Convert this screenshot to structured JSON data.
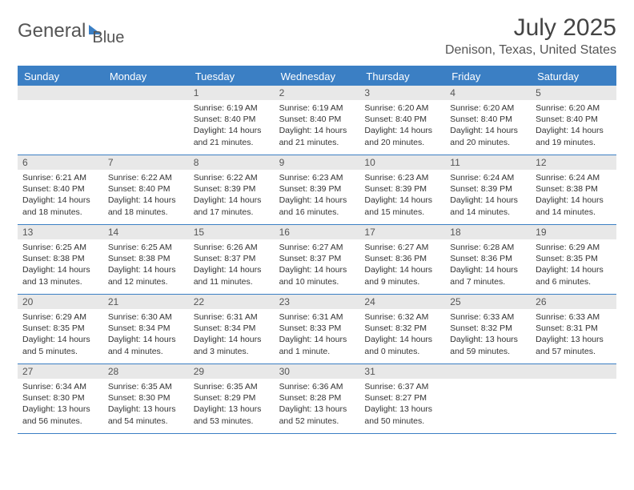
{
  "brand": {
    "word1": "General",
    "word2": "Blue"
  },
  "title": "July 2025",
  "location": "Denison, Texas, United States",
  "colors": {
    "accent": "#3b7fc4",
    "header_text": "#ffffff",
    "num_bar": "#e8e8e8",
    "text": "#333333"
  },
  "typography": {
    "title_fontsize": 30,
    "location_fontsize": 16,
    "dow_fontsize": 13,
    "cell_fontsize": 10.5
  },
  "layout": {
    "cols": 7,
    "rows": 5
  },
  "dow": [
    "Sunday",
    "Monday",
    "Tuesday",
    "Wednesday",
    "Thursday",
    "Friday",
    "Saturday"
  ],
  "weeks": [
    [
      {
        "n": "",
        "sunrise": "",
        "sunset": "",
        "daylight": ""
      },
      {
        "n": "",
        "sunrise": "",
        "sunset": "",
        "daylight": ""
      },
      {
        "n": "1",
        "sunrise": "Sunrise: 6:19 AM",
        "sunset": "Sunset: 8:40 PM",
        "daylight": "Daylight: 14 hours and 21 minutes."
      },
      {
        "n": "2",
        "sunrise": "Sunrise: 6:19 AM",
        "sunset": "Sunset: 8:40 PM",
        "daylight": "Daylight: 14 hours and 21 minutes."
      },
      {
        "n": "3",
        "sunrise": "Sunrise: 6:20 AM",
        "sunset": "Sunset: 8:40 PM",
        "daylight": "Daylight: 14 hours and 20 minutes."
      },
      {
        "n": "4",
        "sunrise": "Sunrise: 6:20 AM",
        "sunset": "Sunset: 8:40 PM",
        "daylight": "Daylight: 14 hours and 20 minutes."
      },
      {
        "n": "5",
        "sunrise": "Sunrise: 6:20 AM",
        "sunset": "Sunset: 8:40 PM",
        "daylight": "Daylight: 14 hours and 19 minutes."
      }
    ],
    [
      {
        "n": "6",
        "sunrise": "Sunrise: 6:21 AM",
        "sunset": "Sunset: 8:40 PM",
        "daylight": "Daylight: 14 hours and 18 minutes."
      },
      {
        "n": "7",
        "sunrise": "Sunrise: 6:22 AM",
        "sunset": "Sunset: 8:40 PM",
        "daylight": "Daylight: 14 hours and 18 minutes."
      },
      {
        "n": "8",
        "sunrise": "Sunrise: 6:22 AM",
        "sunset": "Sunset: 8:39 PM",
        "daylight": "Daylight: 14 hours and 17 minutes."
      },
      {
        "n": "9",
        "sunrise": "Sunrise: 6:23 AM",
        "sunset": "Sunset: 8:39 PM",
        "daylight": "Daylight: 14 hours and 16 minutes."
      },
      {
        "n": "10",
        "sunrise": "Sunrise: 6:23 AM",
        "sunset": "Sunset: 8:39 PM",
        "daylight": "Daylight: 14 hours and 15 minutes."
      },
      {
        "n": "11",
        "sunrise": "Sunrise: 6:24 AM",
        "sunset": "Sunset: 8:39 PM",
        "daylight": "Daylight: 14 hours and 14 minutes."
      },
      {
        "n": "12",
        "sunrise": "Sunrise: 6:24 AM",
        "sunset": "Sunset: 8:38 PM",
        "daylight": "Daylight: 14 hours and 14 minutes."
      }
    ],
    [
      {
        "n": "13",
        "sunrise": "Sunrise: 6:25 AM",
        "sunset": "Sunset: 8:38 PM",
        "daylight": "Daylight: 14 hours and 13 minutes."
      },
      {
        "n": "14",
        "sunrise": "Sunrise: 6:25 AM",
        "sunset": "Sunset: 8:38 PM",
        "daylight": "Daylight: 14 hours and 12 minutes."
      },
      {
        "n": "15",
        "sunrise": "Sunrise: 6:26 AM",
        "sunset": "Sunset: 8:37 PM",
        "daylight": "Daylight: 14 hours and 11 minutes."
      },
      {
        "n": "16",
        "sunrise": "Sunrise: 6:27 AM",
        "sunset": "Sunset: 8:37 PM",
        "daylight": "Daylight: 14 hours and 10 minutes."
      },
      {
        "n": "17",
        "sunrise": "Sunrise: 6:27 AM",
        "sunset": "Sunset: 8:36 PM",
        "daylight": "Daylight: 14 hours and 9 minutes."
      },
      {
        "n": "18",
        "sunrise": "Sunrise: 6:28 AM",
        "sunset": "Sunset: 8:36 PM",
        "daylight": "Daylight: 14 hours and 7 minutes."
      },
      {
        "n": "19",
        "sunrise": "Sunrise: 6:29 AM",
        "sunset": "Sunset: 8:35 PM",
        "daylight": "Daylight: 14 hours and 6 minutes."
      }
    ],
    [
      {
        "n": "20",
        "sunrise": "Sunrise: 6:29 AM",
        "sunset": "Sunset: 8:35 PM",
        "daylight": "Daylight: 14 hours and 5 minutes."
      },
      {
        "n": "21",
        "sunrise": "Sunrise: 6:30 AM",
        "sunset": "Sunset: 8:34 PM",
        "daylight": "Daylight: 14 hours and 4 minutes."
      },
      {
        "n": "22",
        "sunrise": "Sunrise: 6:31 AM",
        "sunset": "Sunset: 8:34 PM",
        "daylight": "Daylight: 14 hours and 3 minutes."
      },
      {
        "n": "23",
        "sunrise": "Sunrise: 6:31 AM",
        "sunset": "Sunset: 8:33 PM",
        "daylight": "Daylight: 14 hours and 1 minute."
      },
      {
        "n": "24",
        "sunrise": "Sunrise: 6:32 AM",
        "sunset": "Sunset: 8:32 PM",
        "daylight": "Daylight: 14 hours and 0 minutes."
      },
      {
        "n": "25",
        "sunrise": "Sunrise: 6:33 AM",
        "sunset": "Sunset: 8:32 PM",
        "daylight": "Daylight: 13 hours and 59 minutes."
      },
      {
        "n": "26",
        "sunrise": "Sunrise: 6:33 AM",
        "sunset": "Sunset: 8:31 PM",
        "daylight": "Daylight: 13 hours and 57 minutes."
      }
    ],
    [
      {
        "n": "27",
        "sunrise": "Sunrise: 6:34 AM",
        "sunset": "Sunset: 8:30 PM",
        "daylight": "Daylight: 13 hours and 56 minutes."
      },
      {
        "n": "28",
        "sunrise": "Sunrise: 6:35 AM",
        "sunset": "Sunset: 8:30 PM",
        "daylight": "Daylight: 13 hours and 54 minutes."
      },
      {
        "n": "29",
        "sunrise": "Sunrise: 6:35 AM",
        "sunset": "Sunset: 8:29 PM",
        "daylight": "Daylight: 13 hours and 53 minutes."
      },
      {
        "n": "30",
        "sunrise": "Sunrise: 6:36 AM",
        "sunset": "Sunset: 8:28 PM",
        "daylight": "Daylight: 13 hours and 52 minutes."
      },
      {
        "n": "31",
        "sunrise": "Sunrise: 6:37 AM",
        "sunset": "Sunset: 8:27 PM",
        "daylight": "Daylight: 13 hours and 50 minutes."
      },
      {
        "n": "",
        "sunrise": "",
        "sunset": "",
        "daylight": ""
      },
      {
        "n": "",
        "sunrise": "",
        "sunset": "",
        "daylight": ""
      }
    ]
  ]
}
